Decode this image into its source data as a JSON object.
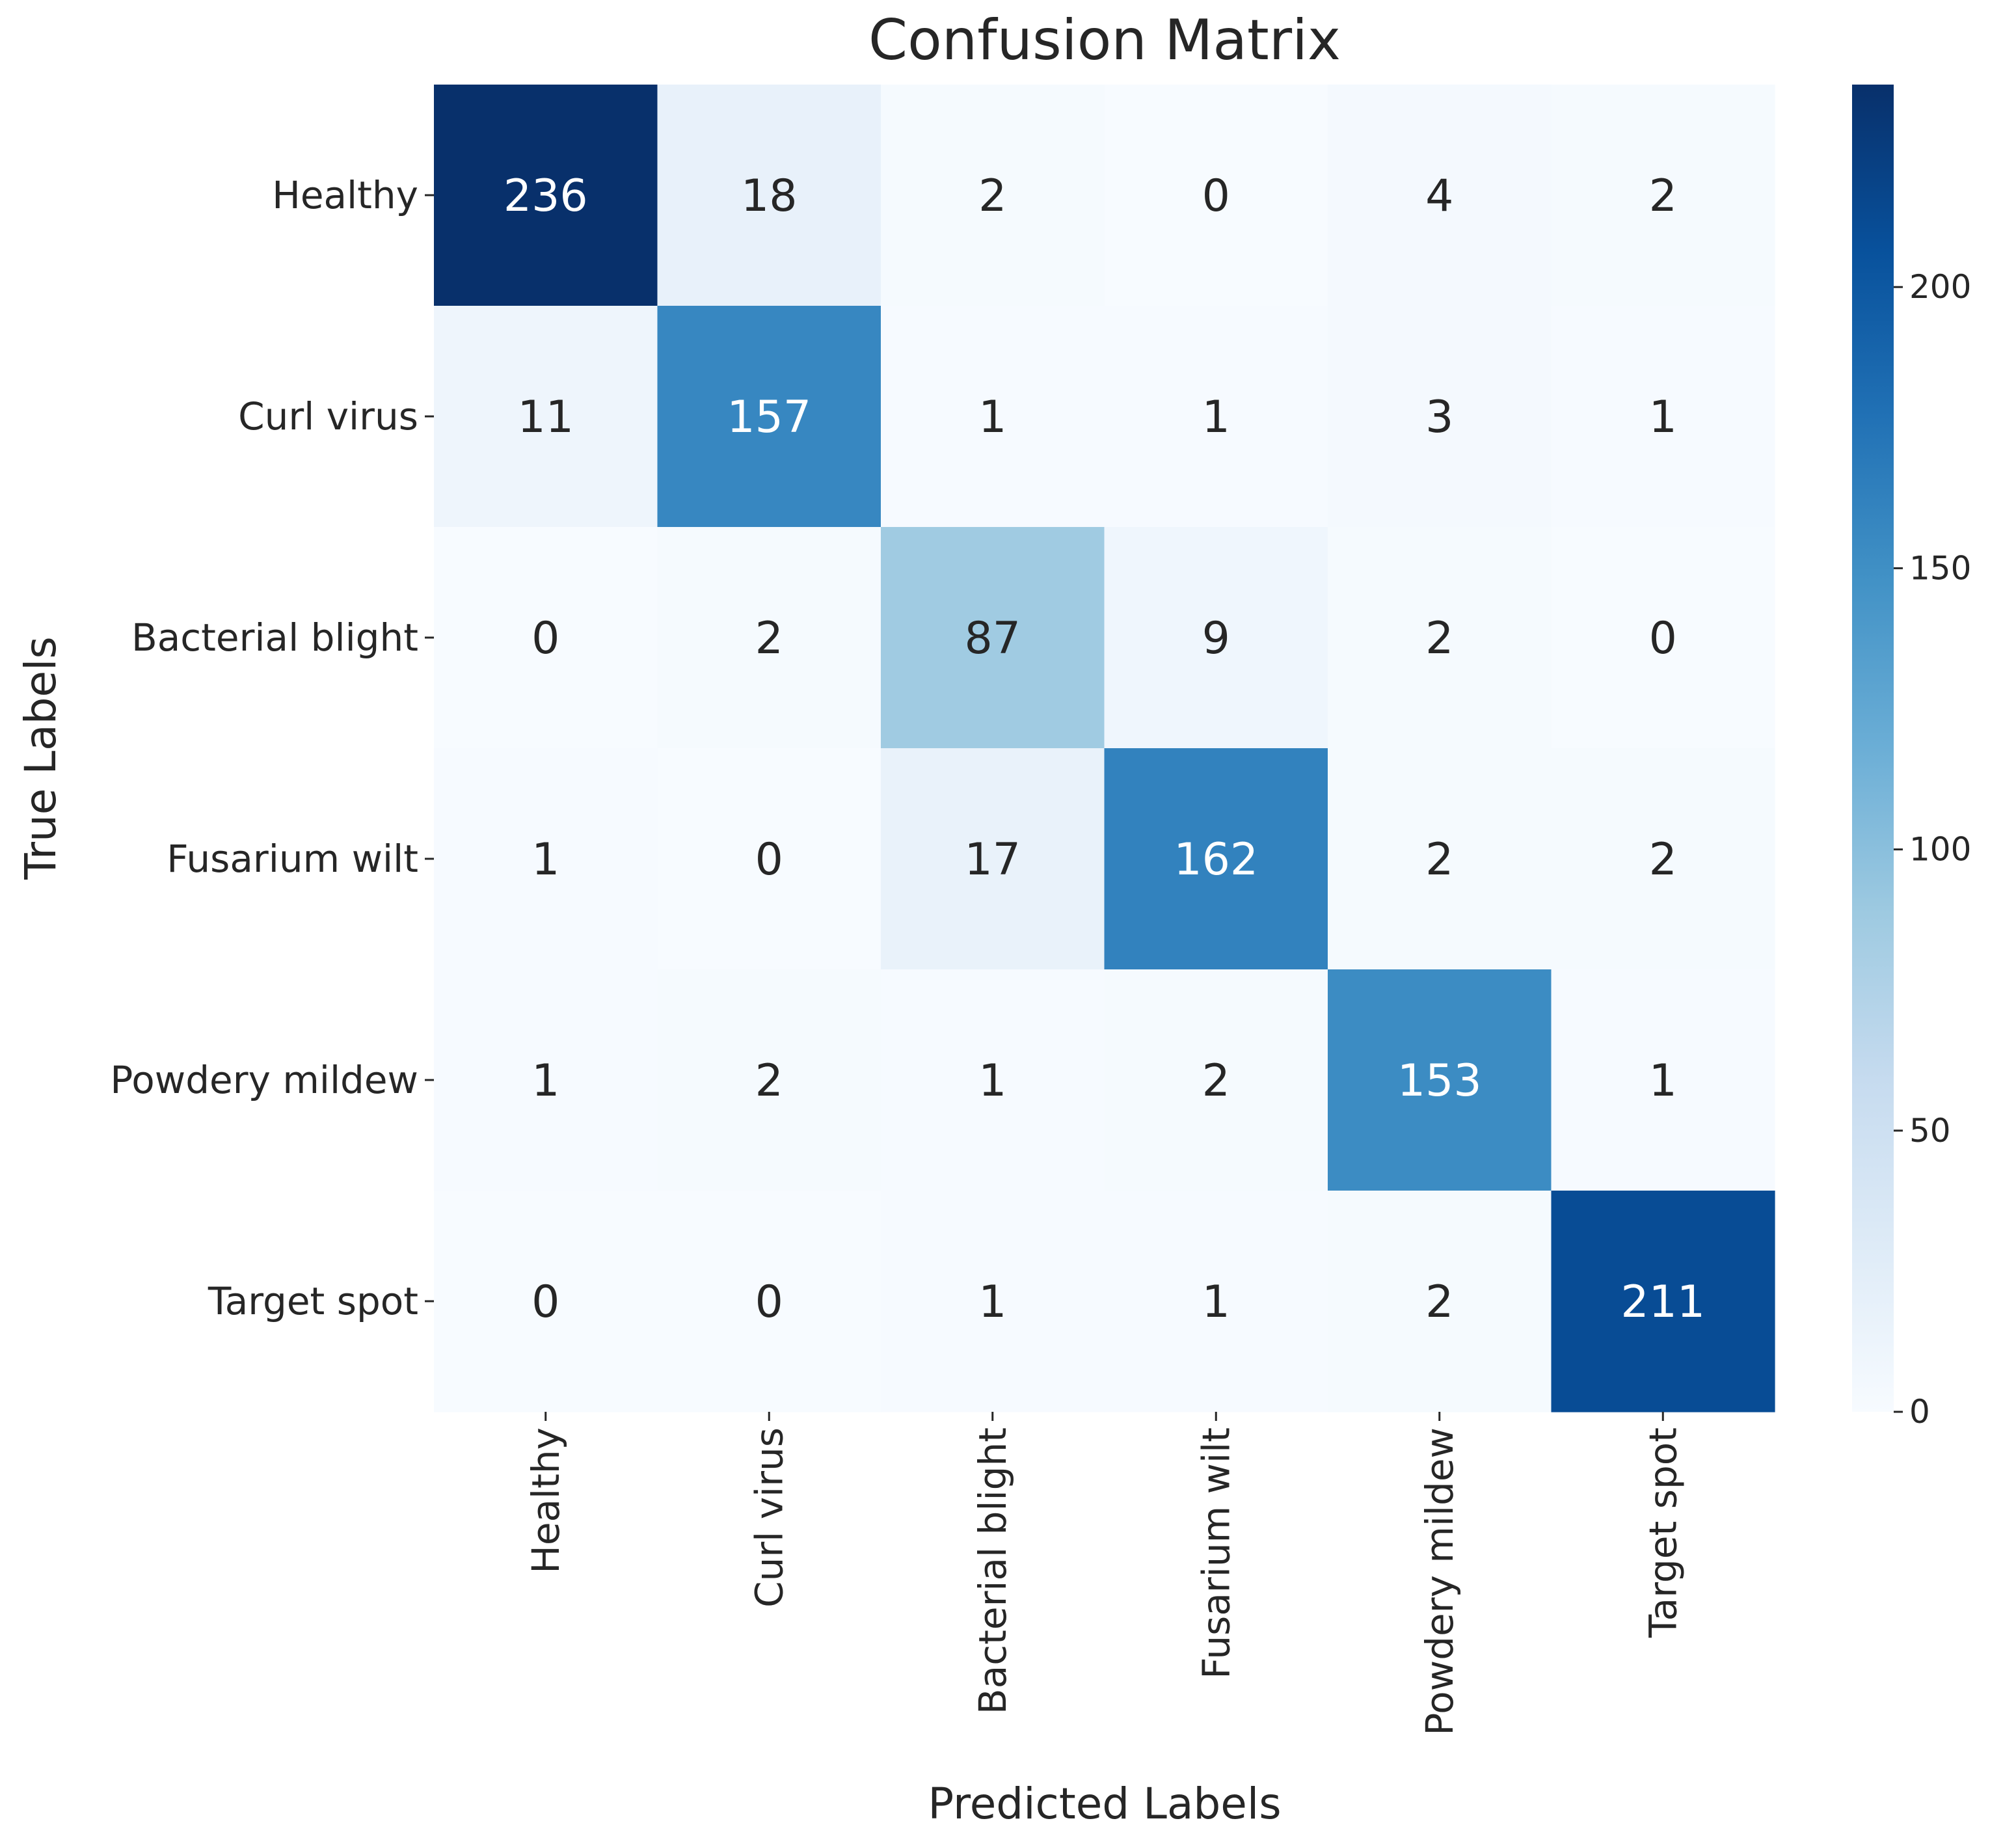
{
  "chart_data": {
    "type": "heatmap",
    "title": "Confusion Matrix",
    "xlabel": "Predicted Labels",
    "ylabel": "True Labels",
    "x_categories": [
      "Healthy",
      "Curl virus",
      "Bacterial blight",
      "Fusarium wilt",
      "Powdery mildew",
      "Target spot"
    ],
    "y_categories": [
      "Healthy",
      "Curl virus",
      "Bacterial blight",
      "Fusarium wilt",
      "Powdery mildew",
      "Target spot"
    ],
    "values": [
      [
        236,
        18,
        2,
        0,
        4,
        2
      ],
      [
        11,
        157,
        1,
        1,
        3,
        1
      ],
      [
        0,
        2,
        87,
        9,
        2,
        0
      ],
      [
        1,
        0,
        17,
        162,
        2,
        2
      ],
      [
        1,
        2,
        1,
        2,
        153,
        1
      ],
      [
        0,
        0,
        1,
        1,
        2,
        211
      ]
    ],
    "colormap": "Blues",
    "colorbar": {
      "range": [
        0,
        236
      ],
      "ticks": [
        0,
        50,
        100,
        150,
        200
      ]
    }
  }
}
